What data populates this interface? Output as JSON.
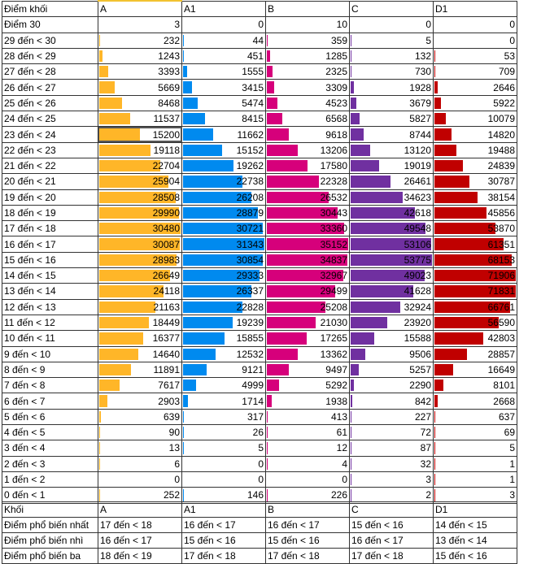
{
  "table": {
    "header": [
      "Điểm khối",
      "A",
      "A1",
      "B",
      "C",
      "D1"
    ],
    "bar_colors": [
      "#FFB628",
      "#008AEF",
      "#D6007B",
      "#7030A0",
      "#C00000"
    ],
    "rows": [
      {
        "label": "Điểm 30",
        "values": [
          3,
          0,
          10,
          0,
          0
        ]
      },
      {
        "label": "29 đến < 30",
        "values": [
          232,
          44,
          359,
          5,
          0
        ]
      },
      {
        "label": "28 đến < 29",
        "values": [
          1243,
          451,
          1285,
          132,
          53
        ]
      },
      {
        "label": "27 đến < 28",
        "values": [
          3393,
          1555,
          2325,
          730,
          709
        ]
      },
      {
        "label": "26 đến < 27",
        "values": [
          5669,
          3415,
          3309,
          1928,
          2646
        ]
      },
      {
        "label": "25 đến < 26",
        "values": [
          8468,
          5474,
          4523,
          3679,
          5922
        ]
      },
      {
        "label": "24 đến < 25",
        "values": [
          11537,
          8415,
          6568,
          5827,
          10079
        ]
      },
      {
        "label": "23 đến < 24",
        "values": [
          15200,
          11662,
          9618,
          8744,
          14820
        ]
      },
      {
        "label": "22 đến < 23",
        "values": [
          19118,
          15152,
          13206,
          13120,
          19488
        ]
      },
      {
        "label": "21 đến < 22",
        "values": [
          22704,
          19262,
          17580,
          19019,
          24839
        ]
      },
      {
        "label": "20 đến < 21",
        "values": [
          25904,
          22738,
          22328,
          26461,
          30787
        ]
      },
      {
        "label": "19 đến < 20",
        "values": [
          28508,
          26208,
          26532,
          34623,
          38154
        ]
      },
      {
        "label": "18 đến < 19",
        "values": [
          29990,
          28879,
          30443,
          42618,
          45856
        ]
      },
      {
        "label": "17 đến < 18",
        "values": [
          30480,
          30721,
          33360,
          49548,
          53870
        ]
      },
      {
        "label": "16 đến < 17",
        "values": [
          30087,
          31343,
          35152,
          53106,
          61351
        ]
      },
      {
        "label": "15 đến < 16",
        "values": [
          28983,
          30854,
          34837,
          53775,
          68153
        ]
      },
      {
        "label": "14 đến < 15",
        "values": [
          26649,
          29333,
          32967,
          49023,
          71906
        ]
      },
      {
        "label": "13 đến < 14",
        "values": [
          24118,
          26337,
          29499,
          41628,
          71831
        ]
      },
      {
        "label": "12 đến < 13",
        "values": [
          21163,
          22828,
          25208,
          32924,
          66761
        ]
      },
      {
        "label": "11 đến < 12",
        "values": [
          18449,
          19239,
          21030,
          23920,
          56590
        ]
      },
      {
        "label": "10 đến < 11",
        "values": [
          16377,
          15855,
          17265,
          15588,
          42803
        ]
      },
      {
        "label": "9 đến < 10",
        "values": [
          14640,
          12532,
          13362,
          9506,
          28857
        ]
      },
      {
        "label": "8 đến < 9",
        "values": [
          11891,
          9121,
          9497,
          5257,
          16649
        ]
      },
      {
        "label": "7 đến < 8",
        "values": [
          7617,
          4999,
          5292,
          2290,
          8101
        ]
      },
      {
        "label": "6 đến < 7",
        "values": [
          2903,
          1714,
          1938,
          842,
          2668
        ]
      },
      {
        "label": "5 đến < 6",
        "values": [
          639,
          317,
          413,
          227,
          637
        ]
      },
      {
        "label": "4 đến < 5",
        "values": [
          90,
          26,
          61,
          72,
          69
        ]
      },
      {
        "label": "3 đến < 4",
        "values": [
          13,
          5,
          12,
          87,
          5
        ]
      },
      {
        "label": "2 đến < 3",
        "values": [
          6,
          0,
          4,
          32,
          1
        ]
      },
      {
        "label": "1 đến < 2",
        "values": [
          0,
          0,
          0,
          3,
          1
        ]
      },
      {
        "label": "0 đến < 1",
        "values": [
          252,
          146,
          226,
          2,
          3
        ]
      }
    ]
  },
  "summary": {
    "header": [
      "Khối",
      "A",
      "A1",
      "B",
      "C",
      "D1"
    ],
    "rows": [
      [
        "Điểm phổ biến nhất",
        "17 đến < 18",
        "16 đến < 17",
        "16 đến < 17",
        "15 đến < 16",
        "14 đến < 15"
      ],
      [
        "Điểm phổ biến nhì",
        "16 đến < 17",
        "15 đến < 16",
        "15 đến < 16",
        "16 đến < 17",
        "13 đến < 14"
      ],
      [
        "Điểm phổ biến ba",
        "18 đến < 19",
        "17 đến < 18",
        "17 đến < 18",
        "17 đến < 18",
        "15 đến < 16"
      ]
    ]
  }
}
